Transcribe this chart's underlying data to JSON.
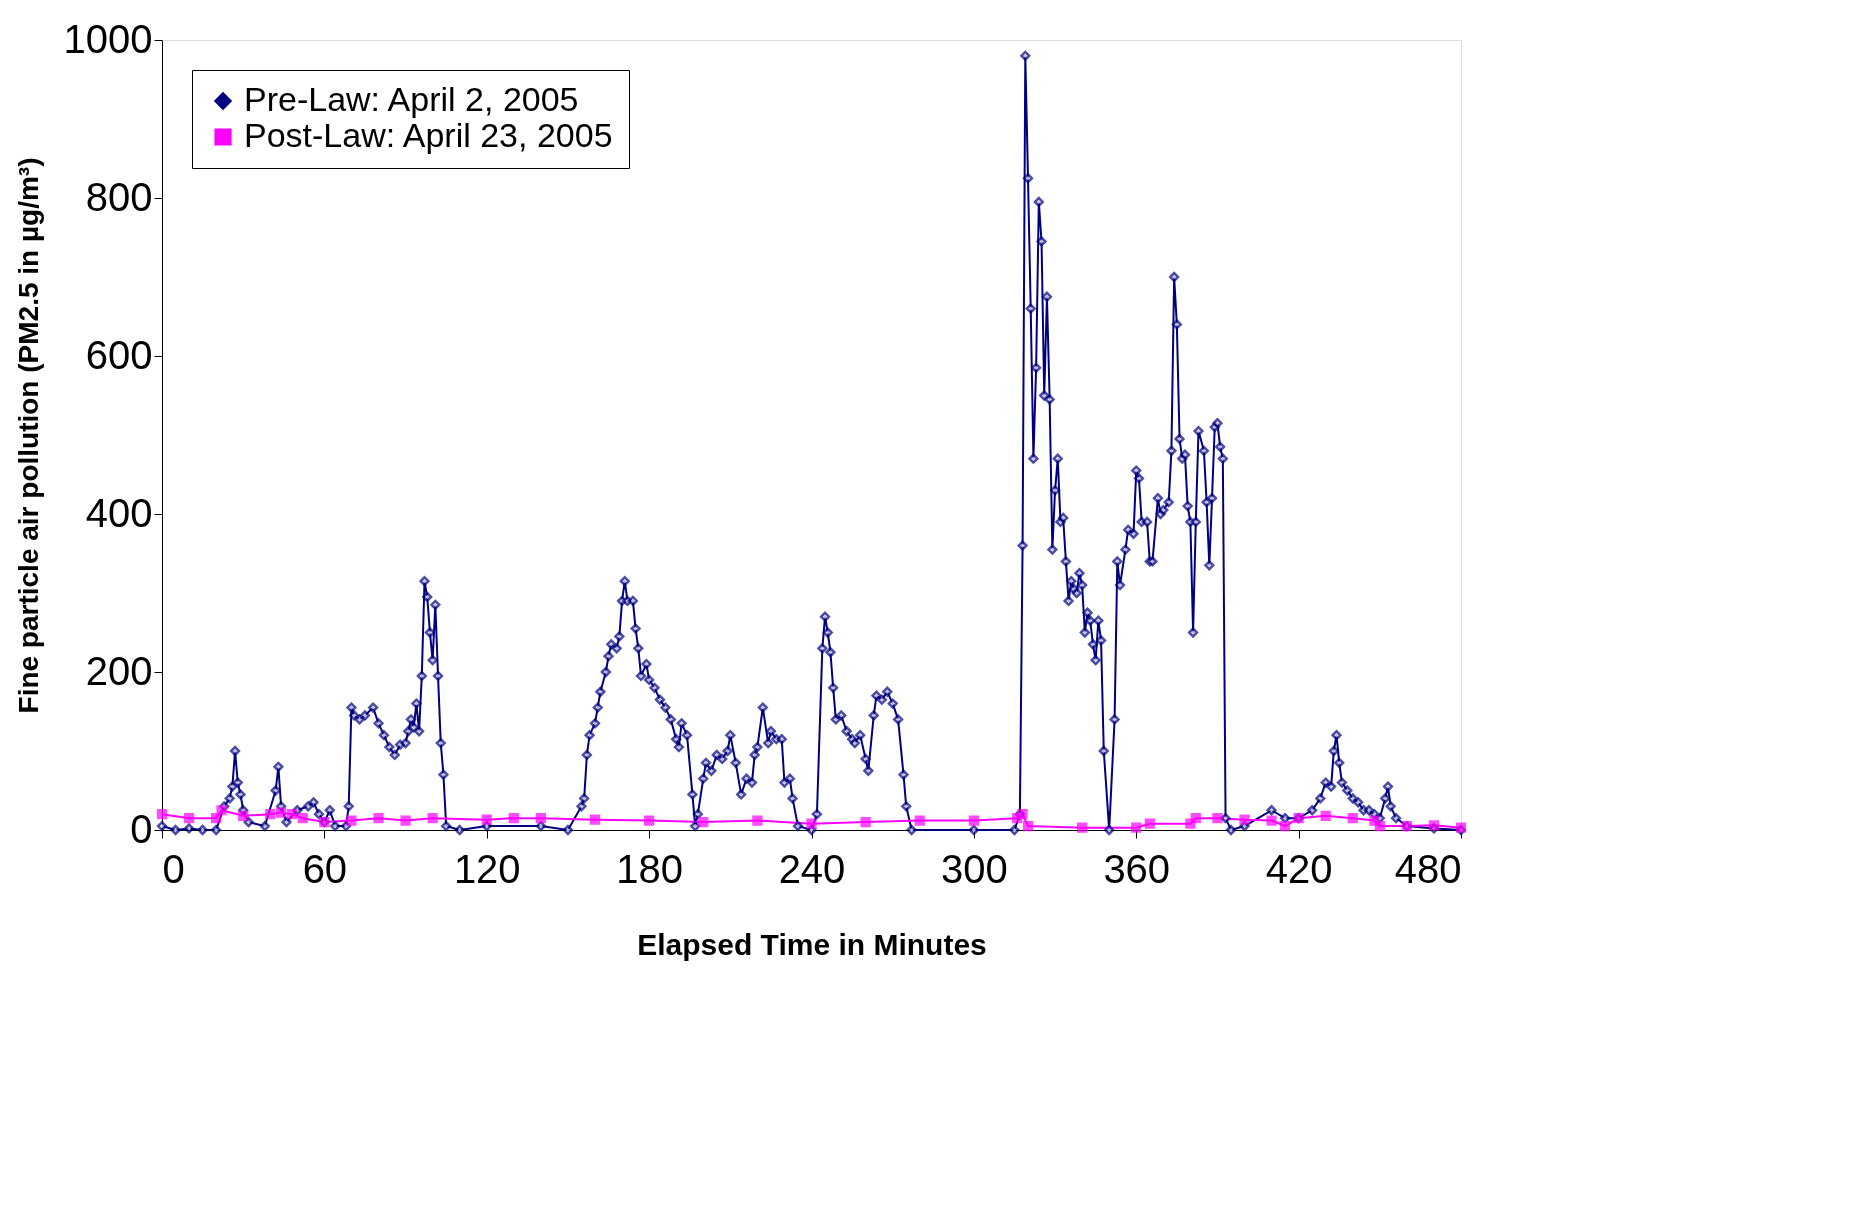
{
  "chart_data": {
    "type": "line",
    "xlabel": "Elapsed Time in Minutes",
    "ylabel": "Fine particle air pollution (PM2.5 in µg/m³)",
    "xlim": [
      0,
      480
    ],
    "xticks": [
      0,
      60,
      120,
      180,
      240,
      300,
      360,
      420,
      480
    ],
    "ylim": [
      0,
      1000
    ],
    "yticks": [
      0,
      200,
      400,
      600,
      800,
      1000
    ],
    "grid": false,
    "legend": "top left",
    "series": [
      {
        "name": "Pre-Law: April 2, 2005",
        "color": "#000080",
        "marker": "diamond",
        "x": [
          0,
          5,
          10,
          15,
          20,
          23,
          25,
          26,
          27,
          28,
          29,
          30,
          32,
          38,
          42,
          43,
          44,
          46,
          50,
          54,
          56,
          58,
          60,
          62,
          64,
          68,
          69,
          70,
          71,
          73,
          75,
          78,
          80,
          82,
          84,
          86,
          88,
          90,
          91,
          92,
          93,
          94,
          95,
          96,
          97,
          98,
          99,
          100,
          101,
          102,
          103,
          104,
          105,
          110,
          120,
          140,
          150,
          155,
          156,
          157,
          158,
          160,
          161,
          162,
          164,
          165,
          166,
          168,
          169,
          170,
          171,
          172,
          174,
          175,
          176,
          177,
          179,
          180,
          182,
          184,
          186,
          188,
          190,
          191,
          192,
          194,
          196,
          197,
          198,
          200,
          201,
          203,
          205,
          207,
          209,
          210,
          212,
          214,
          216,
          218,
          219,
          220,
          222,
          224,
          225,
          227,
          229,
          230,
          232,
          233,
          235,
          240,
          242,
          244,
          245,
          246,
          247,
          248,
          249,
          251,
          253,
          255,
          256,
          258,
          260,
          261,
          263,
          264,
          266,
          268,
          270,
          272,
          274,
          275,
          277,
          300,
          315,
          317,
          318,
          319,
          320,
          321,
          322,
          323,
          324,
          325,
          326,
          327,
          328,
          329,
          330,
          331,
          332,
          333,
          334,
          335,
          336,
          337,
          338,
          339,
          340,
          341,
          342,
          343,
          344,
          345,
          346,
          347,
          348,
          350,
          352,
          353,
          354,
          356,
          357,
          359,
          360,
          361,
          362,
          364,
          365,
          366,
          368,
          369,
          370,
          372,
          373,
          374,
          375,
          376,
          377,
          378,
          379,
          380,
          381,
          382,
          383,
          385,
          386,
          387,
          388,
          389,
          390,
          391,
          392,
          393,
          395,
          400,
          410,
          415,
          420,
          425,
          428,
          430,
          432,
          433,
          434,
          435,
          436,
          438,
          440,
          442,
          444,
          446,
          448,
          450,
          452,
          453,
          454,
          456,
          460,
          470,
          480
        ],
        "values": [
          5,
          0,
          2,
          0,
          0,
          30,
          40,
          55,
          100,
          60,
          45,
          25,
          10,
          5,
          50,
          80,
          30,
          10,
          25,
          30,
          35,
          20,
          10,
          25,
          5,
          5,
          30,
          155,
          145,
          140,
          145,
          155,
          135,
          120,
          105,
          95,
          108,
          110,
          125,
          140,
          130,
          160,
          125,
          195,
          315,
          295,
          250,
          215,
          285,
          195,
          110,
          70,
          5,
          0,
          5,
          5,
          0,
          30,
          40,
          95,
          120,
          135,
          155,
          175,
          200,
          220,
          235,
          230,
          245,
          290,
          315,
          290,
          290,
          255,
          230,
          195,
          210,
          190,
          180,
          165,
          155,
          140,
          115,
          105,
          135,
          120,
          45,
          5,
          20,
          65,
          85,
          75,
          95,
          90,
          100,
          120,
          85,
          45,
          65,
          60,
          95,
          105,
          155,
          110,
          125,
          115,
          115,
          60,
          65,
          40,
          5,
          0,
          20,
          230,
          270,
          250,
          225,
          180,
          140,
          145,
          125,
          115,
          110,
          120,
          90,
          75,
          145,
          170,
          165,
          175,
          160,
          140,
          70,
          30,
          0,
          0,
          0,
          20,
          360,
          980,
          825,
          660,
          470,
          585,
          795,
          745,
          550,
          675,
          545,
          355,
          430,
          470,
          390,
          395,
          340,
          290,
          315,
          305,
          300,
          325,
          310,
          250,
          275,
          265,
          235,
          215,
          265,
          240,
          100,
          0,
          140,
          340,
          310,
          355,
          380,
          375,
          455,
          445,
          390,
          390,
          340,
          340,
          420,
          400,
          405,
          415,
          480,
          700,
          640,
          495,
          470,
          475,
          410,
          390,
          250,
          390,
          505,
          480,
          415,
          335,
          420,
          510,
          515,
          485,
          470,
          15,
          0,
          5,
          25,
          15,
          15,
          25,
          40,
          60,
          55,
          100,
          120,
          85,
          60,
          50,
          40,
          35,
          25,
          25,
          20,
          15,
          40,
          55,
          30,
          15,
          5,
          2,
          0
        ]
      },
      {
        "name": "Post-Law: April 23, 2005",
        "color": "#ff00ff",
        "marker": "square",
        "x": [
          0,
          10,
          20,
          22,
          30,
          40,
          44,
          48,
          52,
          60,
          70,
          80,
          90,
          100,
          120,
          130,
          140,
          160,
          180,
          200,
          220,
          240,
          260,
          280,
          300,
          316,
          318,
          320,
          340,
          360,
          365,
          380,
          382,
          390,
          400,
          410,
          415,
          420,
          430,
          440,
          448,
          450,
          460,
          470,
          480
        ],
        "values": [
          20,
          15,
          15,
          25,
          18,
          20,
          22,
          20,
          15,
          10,
          12,
          15,
          12,
          15,
          13,
          15,
          15,
          13,
          12,
          10,
          12,
          8,
          10,
          12,
          12,
          15,
          20,
          5,
          3,
          3,
          8,
          8,
          15,
          15,
          13,
          12,
          5,
          15,
          18,
          15,
          12,
          5,
          5,
          6,
          3
        ]
      }
    ]
  }
}
